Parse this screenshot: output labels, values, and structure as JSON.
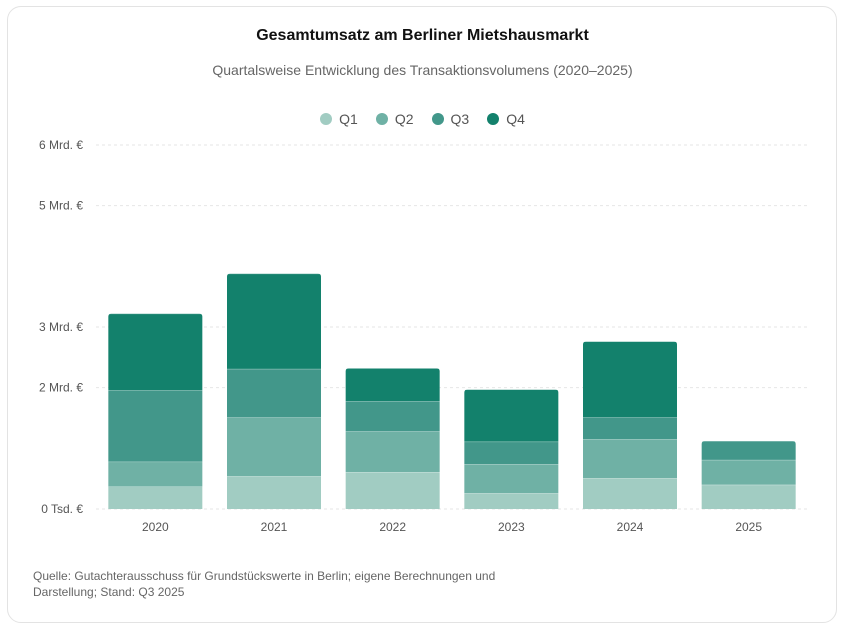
{
  "chart_data": {
    "type": "bar",
    "stacked": true,
    "title": "Gesamtumsatz am Berliner Mietshausmarkt",
    "subtitle": "Quartalsweise Entwicklung des Transaktionsvolumens (2020–2025)",
    "categories": [
      "2020",
      "2021",
      "2022",
      "2023",
      "2024",
      "2025"
    ],
    "series": [
      {
        "name": "Q1",
        "color": "#a1ccc2",
        "values": [
          0.37,
          0.54,
          0.61,
          0.26,
          0.51,
          0.4
        ]
      },
      {
        "name": "Q2",
        "color": "#6fb1a5",
        "values": [
          0.41,
          0.97,
          0.67,
          0.48,
          0.64,
          0.41
        ]
      },
      {
        "name": "Q3",
        "color": "#42978a",
        "values": [
          1.18,
          0.8,
          0.5,
          0.37,
          0.36,
          0.31
        ]
      },
      {
        "name": "Q4",
        "color": "#13816c",
        "values": [
          1.26,
          1.57,
          0.54,
          0.86,
          1.25,
          0
        ]
      }
    ],
    "y_ticks": [
      {
        "value": 0,
        "label": "0 Tsd. €"
      },
      {
        "value": 2,
        "label": "2 Mrd. €"
      },
      {
        "value": 3,
        "label": "3 Mrd. €"
      },
      {
        "value": 5,
        "label": "5 Mrd. €"
      },
      {
        "value": 6,
        "label": "6 Mrd. €"
      }
    ],
    "ylim": [
      0,
      6
    ],
    "ylabel": "",
    "xlabel": "",
    "grid": true,
    "legend_position": "top-center"
  },
  "source": "Quelle: Gutachterausschuss für Grundstückswerte in Berlin; eigene Berechnungen und Darstellung; Stand: Q3 2025"
}
